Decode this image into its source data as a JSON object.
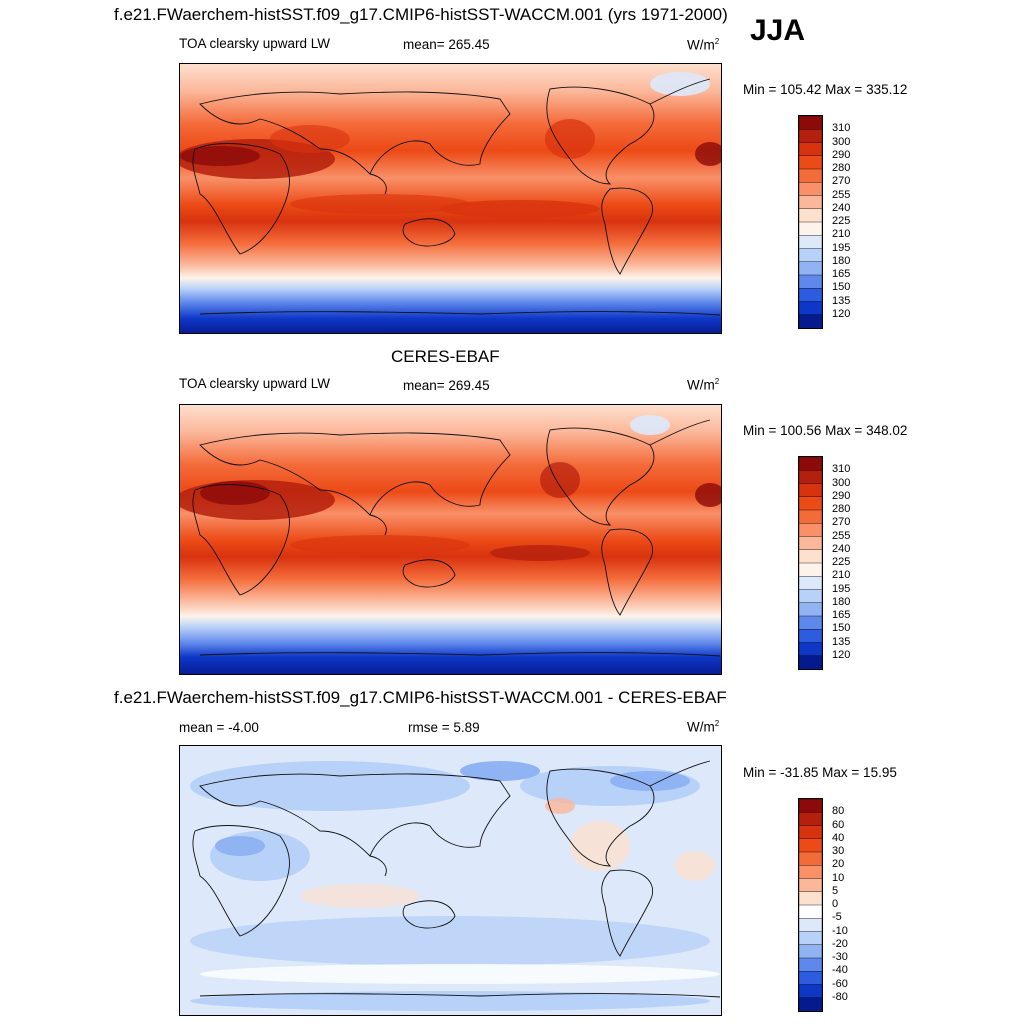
{
  "season": "JJA",
  "panels": [
    {
      "title": "f.e21.FWaerchem-histSST.f09_g17.CMIP6-histSST-WACCM.001 (yrs 1971-2000)",
      "left_label": "TOA clearsky upward LW",
      "center_label": "mean= 265.45",
      "units": "W/m",
      "units_sup": "2",
      "minmax": "Min = 105.42 Max = 335.12",
      "colorbar_labels": [
        "310",
        "300",
        "290",
        "280",
        "270",
        "255",
        "240",
        "225",
        "210",
        "195",
        "180",
        "165",
        "150",
        "135",
        "120"
      ],
      "colorbar_colors": [
        "#8c0a0a",
        "#b5200e",
        "#d8330f",
        "#ec4a16",
        "#f46b3a",
        "#f99068",
        "#fbb79a",
        "#fde0ce",
        "#fdf3ea",
        "#dde9fb",
        "#b8d1f8",
        "#8fb3f3",
        "#5f88ec",
        "#2d5ce0",
        "#0e37c7",
        "#061a90"
      ]
    },
    {
      "title": "CERES-EBAF",
      "left_label": "TOA clearsky upward LW",
      "center_label": "mean= 269.45",
      "units": "W/m",
      "units_sup": "2",
      "minmax": "Min = 100.56 Max = 348.02",
      "colorbar_labels": [
        "310",
        "300",
        "290",
        "280",
        "270",
        "255",
        "240",
        "225",
        "210",
        "195",
        "180",
        "165",
        "150",
        "135",
        "120"
      ],
      "colorbar_colors": [
        "#8c0a0a",
        "#b5200e",
        "#d8330f",
        "#ec4a16",
        "#f46b3a",
        "#f99068",
        "#fbb79a",
        "#fde0ce",
        "#fdf3ea",
        "#dde9fb",
        "#b8d1f8",
        "#8fb3f3",
        "#5f88ec",
        "#2d5ce0",
        "#0e37c7",
        "#061a90"
      ]
    },
    {
      "title": "f.e21.FWaerchem-histSST.f09_g17.CMIP6-histSST-WACCM.001 - CERES-EBAF",
      "left_label": "mean = -4.00",
      "center_label": "rmse = 5.89",
      "units": "W/m",
      "units_sup": "2",
      "minmax": "Min = -31.85 Max = 15.95",
      "colorbar_labels": [
        "80",
        "60",
        "40",
        "30",
        "20",
        "10",
        "5",
        "0",
        "-5",
        "-10",
        "-20",
        "-30",
        "-40",
        "-60",
        "-80"
      ],
      "colorbar_colors": [
        "#8c0a0a",
        "#b5200e",
        "#d8330f",
        "#ec4a16",
        "#f46b3a",
        "#f99068",
        "#fbb79a",
        "#fde0ce",
        "#ffffff",
        "#dde9fb",
        "#b8d1f8",
        "#8fb3f3",
        "#5f88ec",
        "#2d5ce0",
        "#0e37c7",
        "#061a90"
      ]
    }
  ]
}
